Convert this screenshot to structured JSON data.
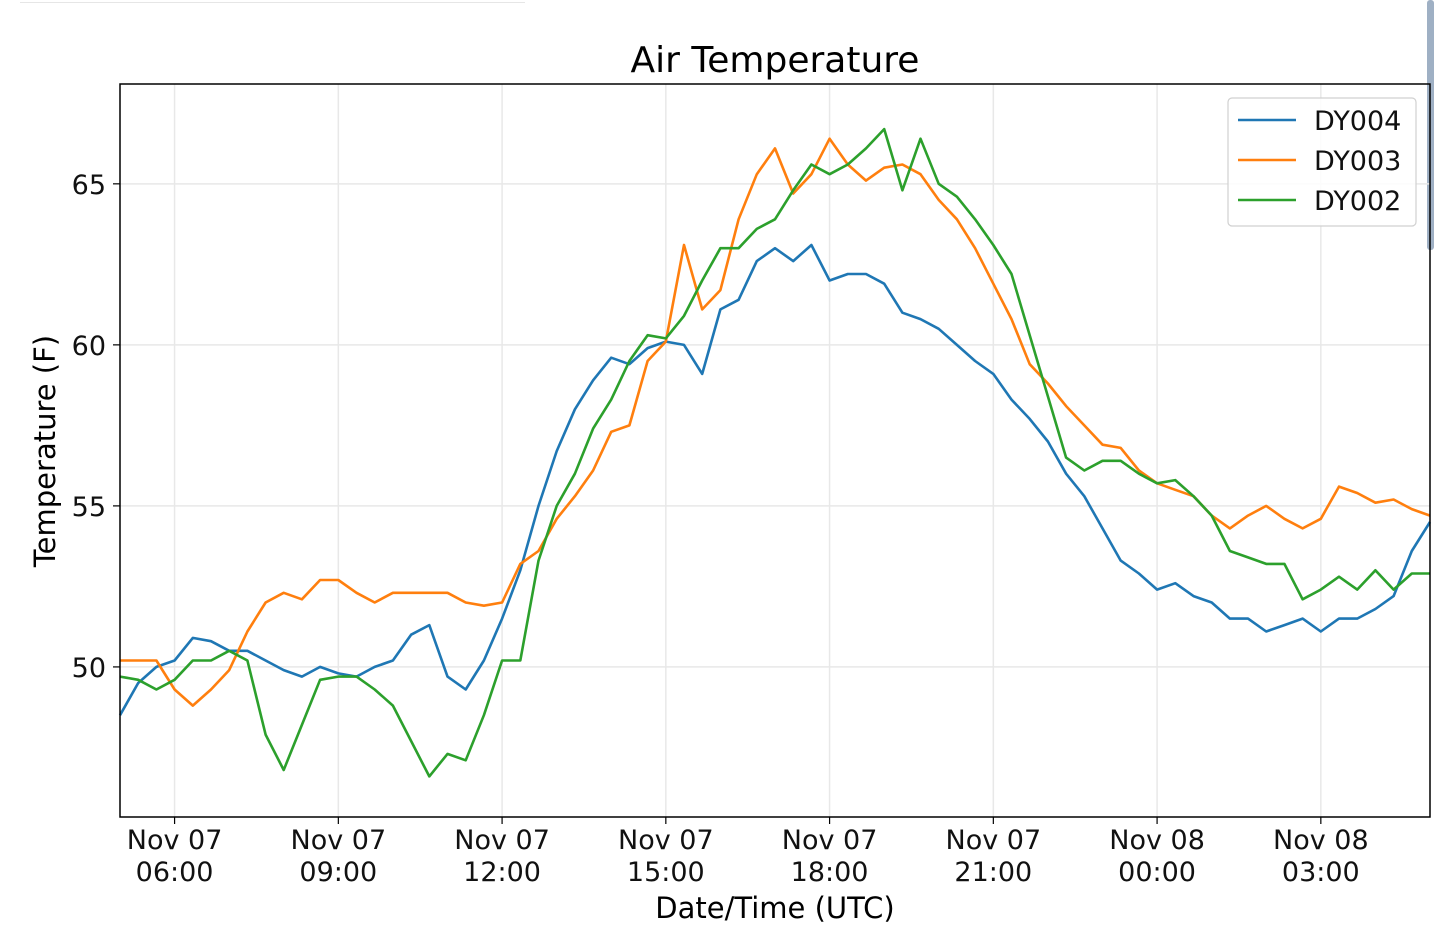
{
  "chart_data": {
    "type": "line",
    "title": "Air Temperature",
    "xlabel": "Date/Time (UTC)",
    "ylabel": "Temperature (F)",
    "ylim": [
      45.34,
      68.1
    ],
    "yticks": [
      50,
      55,
      60,
      65
    ],
    "ytick_labels": [
      "50",
      "55",
      "60",
      "65"
    ],
    "x_units": "hours since Nov 07 00:00 UTC",
    "xlim": [
      5.0,
      29.0
    ],
    "xticks": [
      6,
      9,
      12,
      15,
      18,
      21,
      24,
      27
    ],
    "xtick_labels": [
      [
        "Nov 07",
        "06:00"
      ],
      [
        "Nov 07",
        "09:00"
      ],
      [
        "Nov 07",
        "12:00"
      ],
      [
        "Nov 07",
        "15:00"
      ],
      [
        "Nov 07",
        "18:00"
      ],
      [
        "Nov 07",
        "21:00"
      ],
      [
        "Nov 08",
        "00:00"
      ],
      [
        "Nov 08",
        "03:00"
      ]
    ],
    "grid": true,
    "legend_position": "top-right",
    "x_start": 5.0,
    "x_step": 0.33333,
    "series": [
      {
        "name": "DY004",
        "color": "#1f77b4",
        "values": [
          48.5,
          49.5,
          50.0,
          50.2,
          50.9,
          50.8,
          50.5,
          50.5,
          50.2,
          49.9,
          49.7,
          50.0,
          49.8,
          49.7,
          50.0,
          50.2,
          51.0,
          51.3,
          49.7,
          49.3,
          50.2,
          51.5,
          53.0,
          55.0,
          56.7,
          58.0,
          58.9,
          59.6,
          59.4,
          59.9,
          60.1,
          60.0,
          59.1,
          61.1,
          61.4,
          62.6,
          63.0,
          62.6,
          63.1,
          62.0,
          62.2,
          62.2,
          61.9,
          61.0,
          60.8,
          60.5,
          60.0,
          59.5,
          59.1,
          58.3,
          57.7,
          57.0,
          56.0,
          55.3,
          54.3,
          53.3,
          52.9,
          52.4,
          52.6,
          52.2,
          52.0,
          51.5,
          51.5,
          51.1,
          51.3,
          51.5,
          51.1,
          51.5,
          51.5,
          51.8,
          52.2,
          53.6,
          54.5
        ]
      },
      {
        "name": "DY003",
        "color": "#ff7f0e",
        "values": [
          50.2,
          50.2,
          50.2,
          49.3,
          48.8,
          49.3,
          49.9,
          51.1,
          52.0,
          52.3,
          52.1,
          52.7,
          52.7,
          52.3,
          52.0,
          52.3,
          52.3,
          52.3,
          52.3,
          52.0,
          51.9,
          52.0,
          53.2,
          53.6,
          54.6,
          55.3,
          56.1,
          57.3,
          57.5,
          59.5,
          60.1,
          63.1,
          61.1,
          61.7,
          63.9,
          65.3,
          66.1,
          64.7,
          65.3,
          66.4,
          65.6,
          65.1,
          65.5,
          65.6,
          65.3,
          64.5,
          63.9,
          63.0,
          61.9,
          60.8,
          59.4,
          58.8,
          58.1,
          57.5,
          56.9,
          56.8,
          56.1,
          55.7,
          55.5,
          55.3,
          54.7,
          54.3,
          54.7,
          55.0,
          54.6,
          54.3,
          54.6,
          55.6,
          55.4,
          55.1,
          55.2,
          54.9,
          54.7
        ]
      },
      {
        "name": "DY002",
        "color": "#2ca02c",
        "values": [
          49.7,
          49.6,
          49.3,
          49.6,
          50.2,
          50.2,
          50.5,
          50.2,
          47.9,
          46.8,
          48.2,
          49.6,
          49.7,
          49.7,
          49.3,
          48.8,
          47.7,
          46.6,
          47.3,
          47.1,
          48.5,
          50.2,
          50.2,
          53.3,
          55.0,
          56.0,
          57.4,
          58.3,
          59.5,
          60.3,
          60.2,
          60.9,
          62.0,
          63.0,
          63.0,
          63.6,
          63.9,
          64.8,
          65.6,
          65.3,
          65.6,
          66.1,
          66.7,
          64.8,
          66.4,
          65.0,
          64.6,
          63.9,
          63.1,
          62.2,
          60.3,
          58.4,
          56.5,
          56.1,
          56.4,
          56.4,
          56.0,
          55.7,
          55.8,
          55.3,
          54.7,
          53.6,
          53.4,
          53.2,
          53.2,
          52.1,
          52.4,
          52.8,
          52.4,
          53.0,
          52.4,
          52.9,
          52.9
        ]
      }
    ]
  }
}
